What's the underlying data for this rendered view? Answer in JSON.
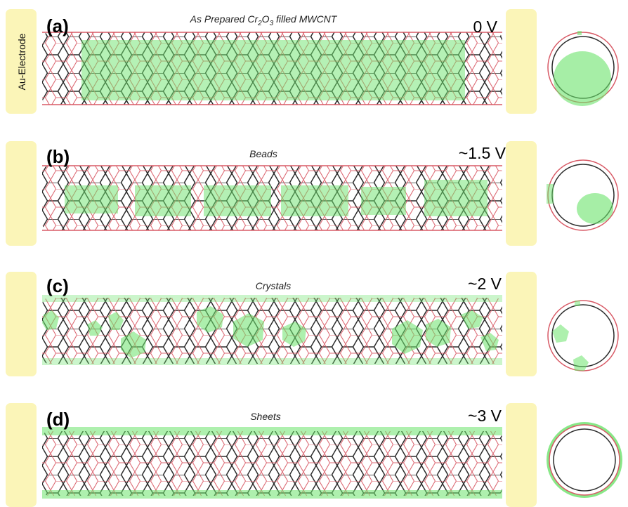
{
  "electrode_label": "Au-Electrode",
  "colors": {
    "electrode": "#fbf5b8",
    "filling": "#6be36b",
    "lattice_dark": "#2b2b2b",
    "lattice_red": "#d85a66"
  },
  "panels": [
    {
      "letter": "(a)",
      "title_prefix": "As Prepared  Cr",
      "title_sub1": "2",
      "title_mid": "O",
      "title_sub2": "3",
      "title_suffix": " filled MWCNT",
      "voltage": "0 V",
      "filling": "solid-core"
    },
    {
      "letter": "(b)",
      "title_prefix": "Beads",
      "voltage": "~1.5 V",
      "filling": "beads"
    },
    {
      "letter": "(c)",
      "title_prefix": "Crystals",
      "voltage": "~2 V",
      "filling": "crystals"
    },
    {
      "letter": "(d)",
      "title_prefix": "Sheets",
      "voltage": "~3 V",
      "filling": "sheets"
    }
  ]
}
